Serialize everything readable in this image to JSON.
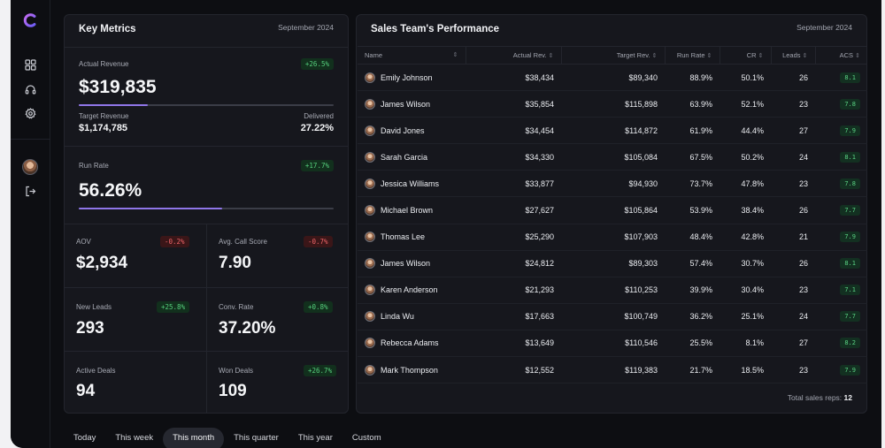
{
  "key_metrics": {
    "title": "Key Metrics",
    "date": "September 2024",
    "actual_revenue": {
      "label": "Actual Revenue",
      "value": "$319,835",
      "change": "+26.5%",
      "progress": 0.27
    },
    "target_revenue": {
      "label": "Target Revenue",
      "value": "$1,174,785"
    },
    "delivered": {
      "label": "Delivered",
      "value": "27.22%"
    },
    "run_rate": {
      "label": "Run Rate",
      "value": "56.26%",
      "change": "+17.7%",
      "progress": 0.5626
    },
    "aov": {
      "label": "AOV",
      "value": "$2,934",
      "change": "-0.2%"
    },
    "avg_call_score": {
      "label": "Avg. Call Score",
      "value": "7.90",
      "change": "-0.7%"
    },
    "new_leads": {
      "label": "New Leads",
      "value": "293",
      "change": "+25.8%"
    },
    "conv_rate": {
      "label": "Conv. Rate",
      "value": "37.20%",
      "change": "+0.8%"
    },
    "active_deals": {
      "label": "Active Deals",
      "value": "94"
    },
    "won_deals": {
      "label": "Won Deals",
      "value": "109",
      "change": "+26.7%"
    }
  },
  "sales_team": {
    "title": "Sales Team's Performance",
    "date": "September 2024",
    "columns": [
      "Name",
      "Actual Rev.",
      "Target Rev.",
      "Run Rate",
      "CR",
      "Leads",
      "ACS"
    ],
    "rows": [
      [
        "Emily Johnson",
        "$38,434",
        "$89,340",
        "88.9%",
        "50.1%",
        "26",
        "8.1"
      ],
      [
        "James Wilson",
        "$35,854",
        "$115,898",
        "63.9%",
        "52.1%",
        "23",
        "7.8"
      ],
      [
        "David Jones",
        "$34,454",
        "$114,872",
        "61.9%",
        "44.4%",
        "27",
        "7.9"
      ],
      [
        "Sarah Garcia",
        "$34,330",
        "$105,084",
        "67.5%",
        "50.2%",
        "24",
        "8.1"
      ],
      [
        "Jessica Williams",
        "$33,877",
        "$94,930",
        "73.7%",
        "47.8%",
        "23",
        "7.8"
      ],
      [
        "Michael Brown",
        "$27,627",
        "$105,864",
        "53.9%",
        "38.4%",
        "26",
        "7.7"
      ],
      [
        "Thomas Lee",
        "$25,290",
        "$107,903",
        "48.4%",
        "42.8%",
        "21",
        "7.9"
      ],
      [
        "James Wilson",
        "$24,812",
        "$89,303",
        "57.4%",
        "30.7%",
        "26",
        "8.1"
      ],
      [
        "Karen Anderson",
        "$21,293",
        "$110,253",
        "39.9%",
        "30.4%",
        "23",
        "7.1"
      ],
      [
        "Linda Wu",
        "$17,663",
        "$100,749",
        "36.2%",
        "25.1%",
        "24",
        "7.7"
      ],
      [
        "Rebecca Adams",
        "$13,649",
        "$110,546",
        "25.5%",
        "8.1%",
        "27",
        "8.2"
      ],
      [
        "Mark Thompson",
        "$12,552",
        "$119,383",
        "21.7%",
        "18.5%",
        "23",
        "7.9"
      ]
    ],
    "total_label": "Total sales reps:",
    "total_value": "12"
  },
  "ranges": [
    "Today",
    "This week",
    "This month",
    "This quarter",
    "This year",
    "Custom"
  ],
  "active_range": "This month",
  "icons": {
    "logo": "logo-icon",
    "dashboard": "grid-icon",
    "support": "headset-icon",
    "settings": "gear-icon",
    "logout": "logout-icon"
  },
  "colors": {
    "accent": "#8f76e8",
    "positive": "#56d07d",
    "negative": "#ef6468",
    "background": "#0d0e12",
    "card": "#16171d"
  }
}
